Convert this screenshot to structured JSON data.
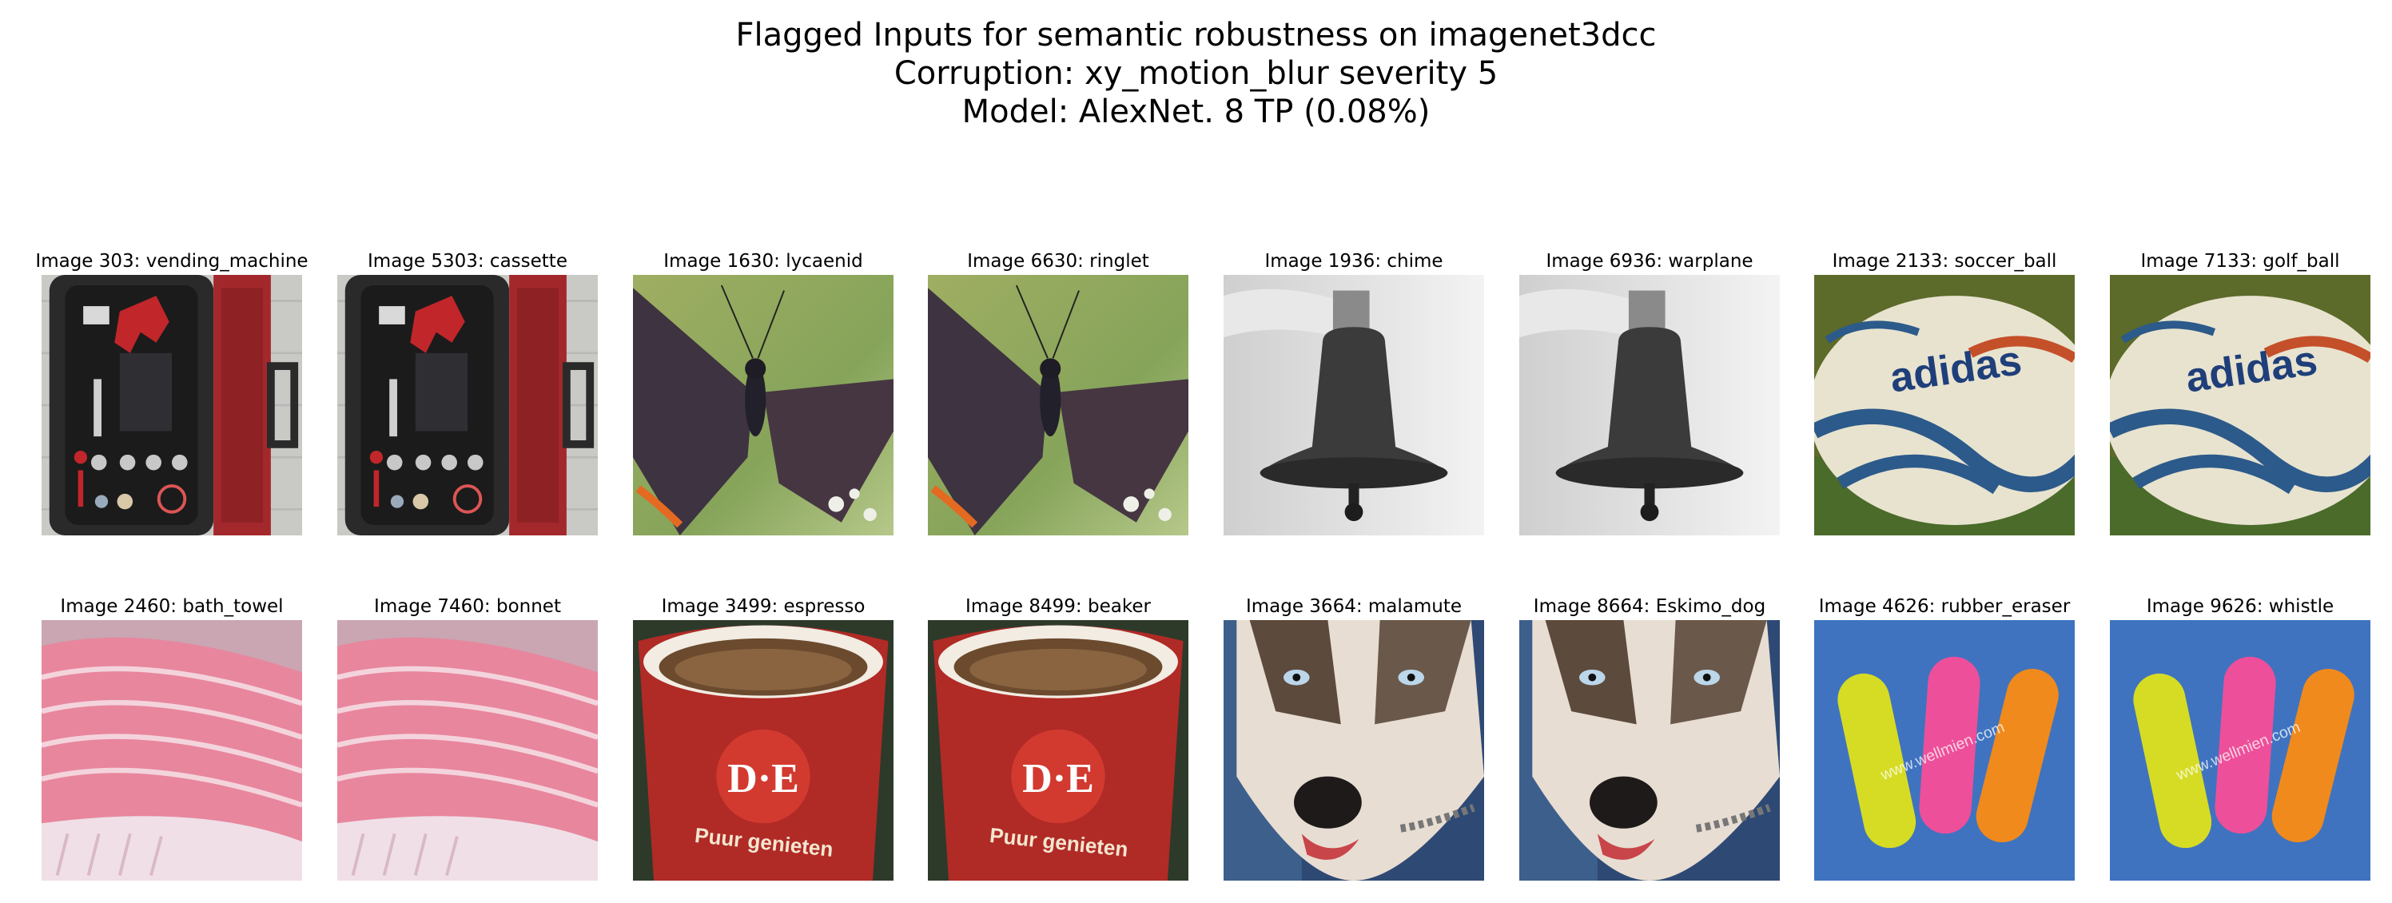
{
  "title": {
    "line1": "Flagged Inputs for semantic robustness on imagenet3dcc",
    "line2": "Corruption: xy_motion_blur severity 5",
    "line3": "Model: AlexNet. 8 TP (0.08%)"
  },
  "panels": [
    {
      "caption": "Image 303: vending_machine",
      "scene": "toolbox"
    },
    {
      "caption": "Image 5303: cassette",
      "scene": "toolbox"
    },
    {
      "caption": "Image 1630: lycaenid",
      "scene": "butterfly"
    },
    {
      "caption": "Image 6630: ringlet",
      "scene": "butterfly"
    },
    {
      "caption": "Image 1936: chime",
      "scene": "bell"
    },
    {
      "caption": "Image 6936: warplane",
      "scene": "bell"
    },
    {
      "caption": "Image 2133: soccer_ball",
      "scene": "ball",
      "logo_text": "adidas"
    },
    {
      "caption": "Image 7133: golf_ball",
      "scene": "ball",
      "logo_text": "adidas"
    },
    {
      "caption": "Image 2460: bath_towel",
      "scene": "towel"
    },
    {
      "caption": "Image 7460: bonnet",
      "scene": "towel"
    },
    {
      "caption": "Image 3499: espresso",
      "scene": "cup",
      "logo_text": "D·E",
      "cup_text": "Puur genieten"
    },
    {
      "caption": "Image 8499: beaker",
      "scene": "cup",
      "logo_text": "D·E",
      "cup_text": "Puur genieten"
    },
    {
      "caption": "Image 3664: malamute",
      "scene": "dog"
    },
    {
      "caption": "Image 8664: Eskimo_dog",
      "scene": "dog"
    },
    {
      "caption": "Image 4626: rubber_eraser",
      "scene": "plasters",
      "watermark": "www.wellmien.com"
    },
    {
      "caption": "Image 9626: whistle",
      "scene": "plasters",
      "watermark": "www.wellmien.com"
    }
  ]
}
